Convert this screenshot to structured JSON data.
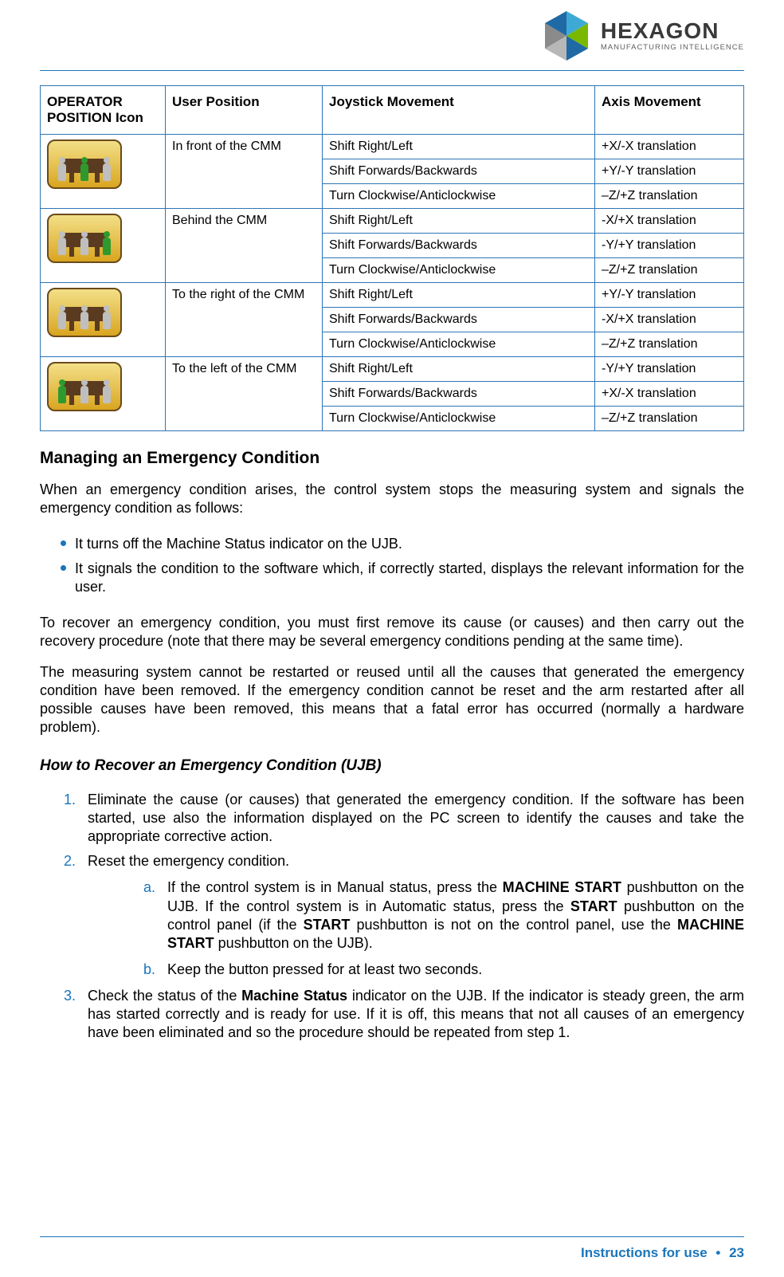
{
  "brand": {
    "name": "HEXAGON",
    "subtitle": "MANUFACTURING INTELLIGENCE",
    "logo_colors": {
      "blue_dark": "#1f6aa5",
      "blue_light": "#3fa9d6",
      "green": "#7ab800",
      "gray": "#7d7d7d"
    }
  },
  "table": {
    "headers": {
      "icon": "OPERATOR POSITION Icon",
      "pos": "User Position",
      "joy": "Joystick Movement",
      "axis": "Axis Movement"
    },
    "groups": [
      {
        "icon_active": "center",
        "position": "In front of the CMM",
        "rows": [
          {
            "joy": "Shift Right/Left",
            "axis": "+X/-X translation"
          },
          {
            "joy": "Shift Forwards/Backwards",
            "axis": "+Y/-Y translation"
          },
          {
            "joy": "Turn Clockwise/Anticlockwise",
            "axis": "–Z/+Z translation"
          }
        ]
      },
      {
        "icon_active": "right",
        "position": "Behind the CMM",
        "rows": [
          {
            "joy": "Shift Right/Left",
            "axis": "-X/+X translation"
          },
          {
            "joy": "Shift Forwards/Backwards",
            "axis": "-Y/+Y translation"
          },
          {
            "joy": "Turn Clockwise/Anticlockwise",
            "axis": "–Z/+Z translation"
          }
        ]
      },
      {
        "icon_active": "none",
        "position": "To the right of the CMM",
        "rows": [
          {
            "joy": "Shift Right/Left",
            "axis": "+Y/-Y translation"
          },
          {
            "joy": "Shift Forwards/Backwards",
            "axis": "-X/+X translation"
          },
          {
            "joy": "Turn Clockwise/Anticlockwise",
            "axis": "–Z/+Z translation"
          }
        ]
      },
      {
        "icon_active": "left",
        "position": "To the left of the CMM",
        "rows": [
          {
            "joy": "Shift Right/Left",
            "axis": "-Y/+Y translation"
          },
          {
            "joy": "Shift Forwards/Backwards",
            "axis": "+X/-X translation"
          },
          {
            "joy": "Turn Clockwise/Anticlockwise",
            "axis": "–Z/+Z translation"
          }
        ]
      }
    ]
  },
  "section": {
    "title": "Managing an Emergency Condition",
    "intro": "When an emergency condition arises, the control system stops the measuring system and signals the emergency condition as follows:",
    "bullets": [
      "It turns off the Machine Status indicator on the UJB.",
      "It signals the condition to the software which, if correctly started, displays the relevant information for the user."
    ],
    "p1": "To recover an emergency condition, you must first remove its cause (or causes) and then carry out the recovery procedure (note that there may be several emergency conditions pending at the same time).",
    "p2": "The measuring system cannot be restarted or reused until all the causes that generated the emergency condition have been removed. If the emergency condition cannot be reset and the arm restarted after all possible causes have been removed, this means that a fatal error has occurred (normally a hardware problem)."
  },
  "subsection": {
    "title": "How to Recover an Emergency Condition (UJB)",
    "steps": {
      "s1": "Eliminate the cause (or causes) that generated the emergency condition. If the software has been started, use also the information displayed on the PC screen to identify the causes and take the appropriate corrective action.",
      "s2": "Reset the emergency condition.",
      "s2a_pre": "If the control system is in Manual status, press the ",
      "s2a_b1": "MACHINE START",
      "s2a_mid1": " pushbutton on the UJB. If the control system is in Automatic status, press the ",
      "s2a_b2": "START",
      "s2a_mid2": " pushbutton on the control panel (if the ",
      "s2a_b3": "START",
      "s2a_mid3": " pushbutton is not on the control panel, use the ",
      "s2a_b4": "MACHINE START",
      "s2a_post": " pushbutton on the UJB).",
      "s2b": "Keep the button pressed for at least two seconds.",
      "s3_pre": "Check the status of the ",
      "s3_b": "Machine Status",
      "s3_post": " indicator on the UJB. If the indicator is steady green, the arm has started correctly and is ready for use. If it is off, this means that not all causes of an emergency have been eliminated and so the procedure should be repeated from step 1."
    }
  },
  "footer": {
    "label": "Instructions for use",
    "page": "23"
  },
  "colors": {
    "accent": "#1a75bb",
    "table_border": "#2e75b6"
  }
}
